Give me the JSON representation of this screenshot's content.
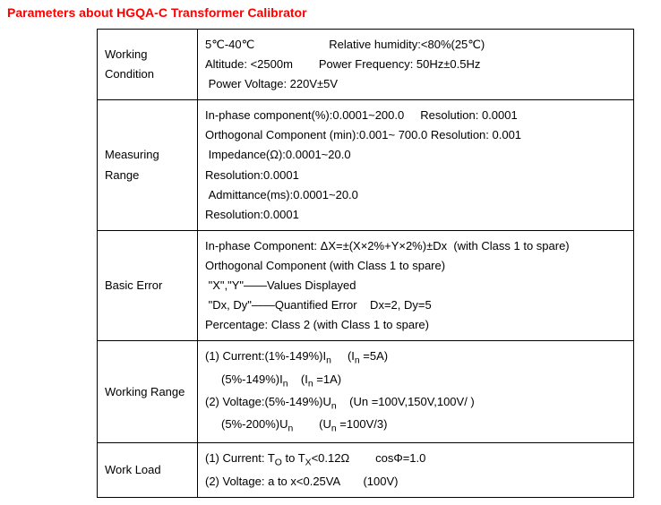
{
  "title": "Parameters about HGQA-C Transformer Calibrator",
  "rows": [
    {
      "label": "Working Condition",
      "lines": [
        "5℃-40℃                       Relative humidity:<80%(25℃)",
        "Altitude: <2500m        Power Frequency: 50Hz±0.5Hz",
        " Power Voltage: 220V±5V"
      ]
    },
    {
      "label": "Measuring Range",
      "lines": [
        "In-phase component(%):0.0001~200.0     Resolution: 0.0001",
        "Orthogonal Component (min):0.001~ 700.0 Resolution: 0.001",
        " Impedance(Ω):0.0001~20.0",
        "Resolution:0.0001",
        " Admittance(ms):0.0001~20.0",
        "Resolution:0.0001"
      ]
    },
    {
      "label": "Basic Error",
      "lines": [
        "In-phase Component: ΔX=±(X×2%+Y×2%)±Dx  (with Class 1 to spare)",
        "Orthogonal Component (with Class 1 to spare)",
        " \"X\",\"Y\"——Values Displayed",
        " \"Dx, Dy\"——Quantified Error    Dx=2, Dy=5",
        "Percentage: Class 2 (with Class 1 to spare)"
      ]
    },
    {
      "label": "Working Range",
      "lines": [],
      "html": "(1) Current:(1%-149%)I<sub>n</sub>     (I<sub>n</sub> =5A)<br>     (5%-149%)I<sub>n</sub>    (I<sub>n</sub> =1A)<br>(2) Voltage:(5%-149%)U<sub>n</sub>    (Un =100V,150V,100V/ )<br>     (5%-200%)U<sub>n</sub>        (U<sub>n</sub> =100V/3)"
    },
    {
      "label": "Work Load",
      "lines": [],
      "html": "(1) Current: T<sub>O</sub> to T<sub>X</sub><0.12Ω        cosΦ=1.0<br>(2) Voltage: a to x<0.25VA       (100V)"
    }
  ]
}
